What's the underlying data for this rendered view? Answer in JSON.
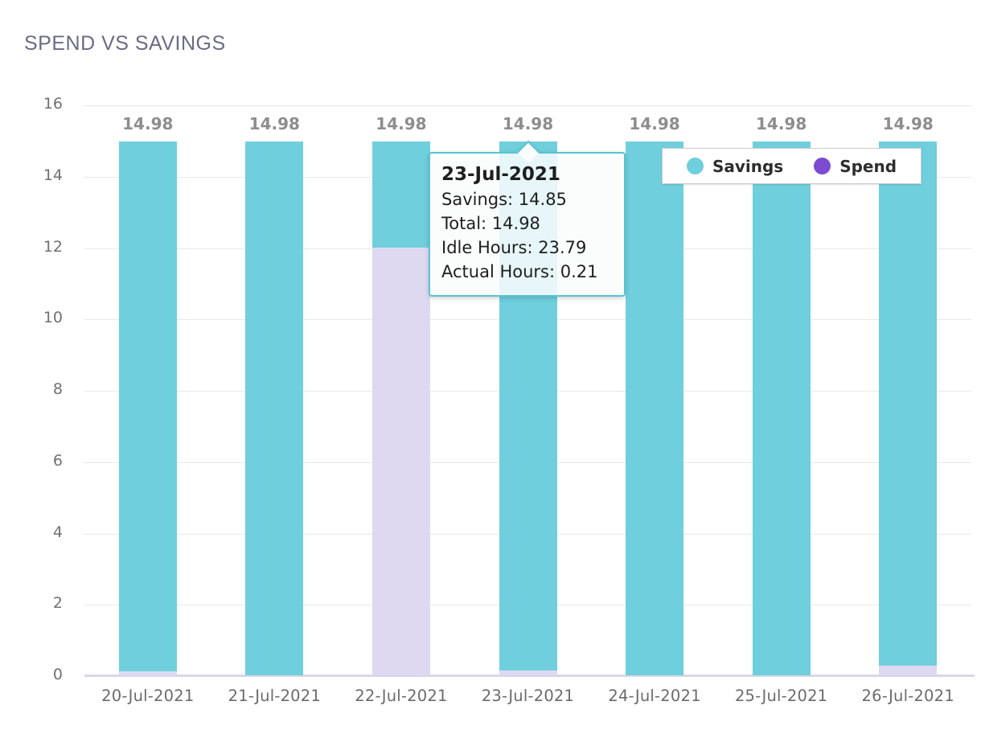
{
  "title": "SPEND VS SAVINGS",
  "colors": {
    "savings_bar": "#70CFDC",
    "spend_bar": "#DED9F1",
    "spend_legend": "#7C4BD2",
    "grid": "#E8E8E8",
    "axis_line": "#D8D6EB",
    "bar_value_label": "#8D8D8D",
    "tick_label": "#707070",
    "title_color": "#6A6B85",
    "tooltip_border": "#58C3D5"
  },
  "legend": {
    "items": [
      {
        "label": "Savings",
        "color": "#70CFDC"
      },
      {
        "label": "Spend",
        "color": "#7C4BD2"
      }
    ]
  },
  "tooltip": {
    "title": "23-Jul-2021",
    "lines": [
      "Savings: 14.85",
      "Total: 14.98",
      "Idle Hours: 23.79",
      "Actual Hours: 0.21"
    ]
  },
  "chart_data": {
    "type": "bar",
    "stacked": true,
    "title": "SPEND VS SAVINGS",
    "categories": [
      "20-Jul-2021",
      "21-Jul-2021",
      "22-Jul-2021",
      "23-Jul-2021",
      "24-Jul-2021",
      "25-Jul-2021",
      "26-Jul-2021"
    ],
    "series": [
      {
        "name": "Spend",
        "color": "#DED9F1",
        "values": [
          0.12,
          0,
          12.0,
          0.13,
          0,
          0,
          0.27
        ]
      },
      {
        "name": "Savings",
        "color": "#70CFDC",
        "values": [
          14.86,
          14.98,
          2.98,
          14.85,
          14.98,
          14.98,
          14.71
        ]
      }
    ],
    "totals": [
      14.98,
      14.98,
      14.98,
      14.98,
      14.98,
      14.98,
      14.98
    ],
    "bar_labels": [
      "14.98",
      "14.98",
      "14.98",
      "14.98",
      "14.98",
      "14.98",
      "14.98"
    ],
    "xlabel": "",
    "ylabel": "",
    "ylim": [
      0,
      16
    ],
    "yticks": [
      0,
      2,
      4,
      6,
      8,
      10,
      12,
      14,
      16
    ],
    "grid": true,
    "legend_position": "top-right"
  }
}
